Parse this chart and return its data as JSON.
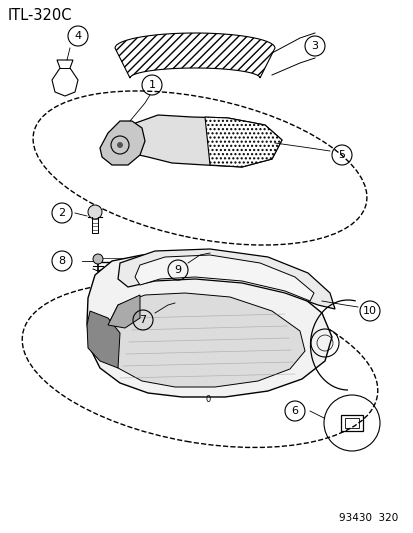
{
  "title": "ITL-320C",
  "footer": "93430  320",
  "bg_color": "#ffffff",
  "line_color": "#000000",
  "label_fontsize": 8,
  "title_fontsize": 10.5,
  "footer_fontsize": 7.5
}
